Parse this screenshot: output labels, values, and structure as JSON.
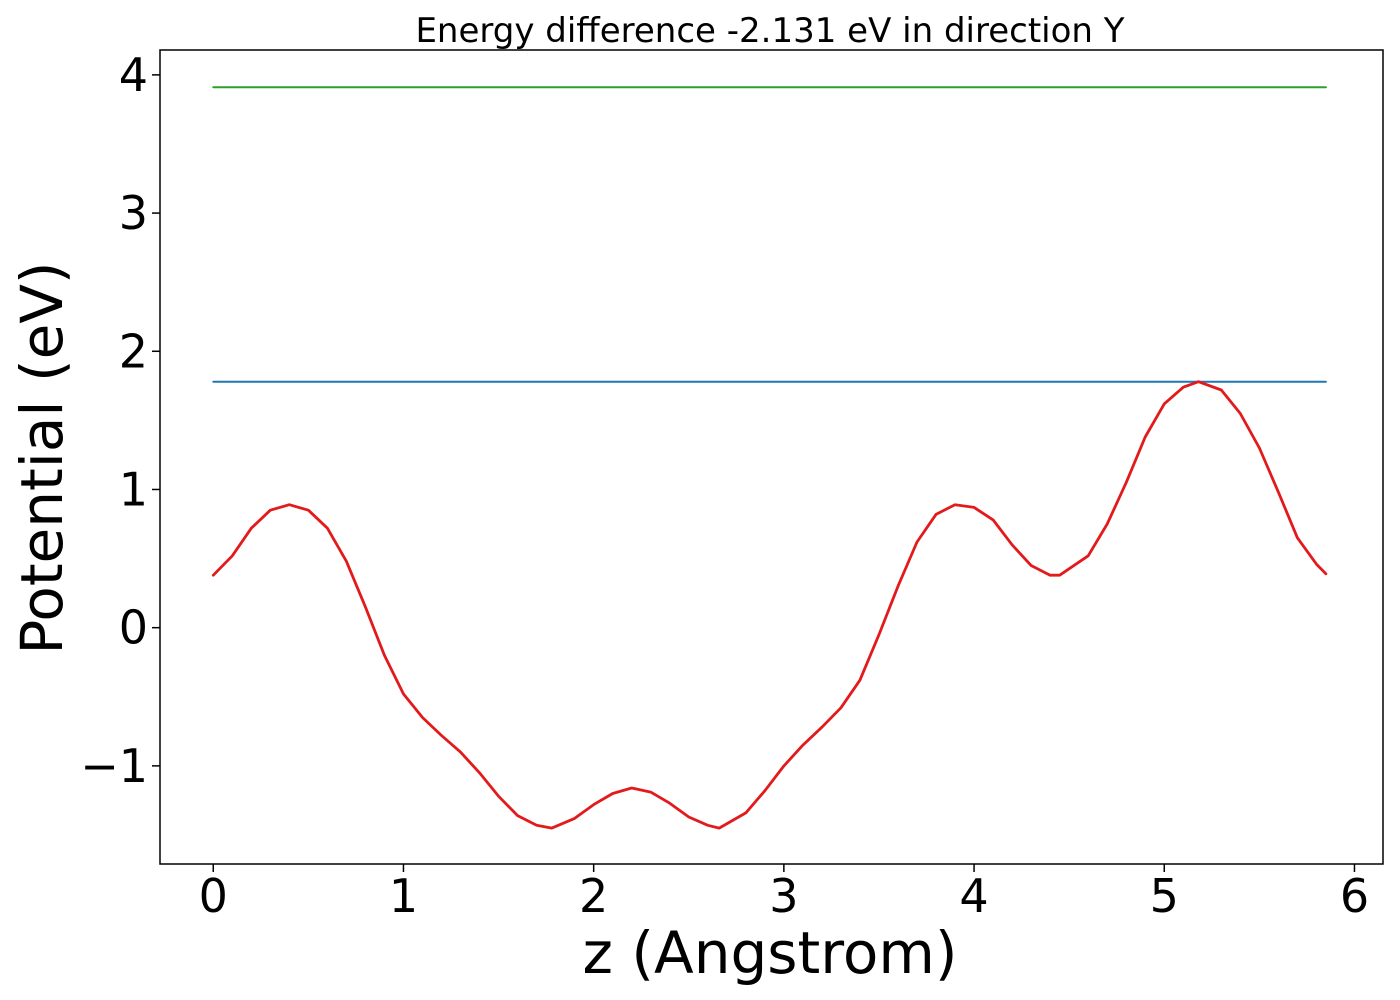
{
  "chart_data": {
    "type": "line",
    "title": "Energy difference -2.131 eV in direction Y",
    "xlabel": "z (Angstrom)",
    "ylabel": "Potential (eV)",
    "xlim": [
      -0.28,
      6.15
    ],
    "ylim": [
      -1.71,
      4.18
    ],
    "xticks": [
      0,
      1,
      2,
      3,
      4,
      5,
      6
    ],
    "xtick_labels": [
      "0",
      "1",
      "2",
      "3",
      "4",
      "5",
      "6"
    ],
    "yticks": [
      -1,
      0,
      1,
      2,
      3,
      4
    ],
    "ytick_labels": [
      "−1",
      "0",
      "1",
      "2",
      "3",
      "4"
    ],
    "grid": false,
    "legend": "none",
    "series": [
      {
        "color": "#2ca02c",
        "x": [
          0,
          5.85
        ],
        "y": [
          3.91,
          3.91
        ]
      },
      {
        "color": "#1f77b4",
        "x": [
          0,
          5.85
        ],
        "y": [
          1.78,
          1.78
        ]
      },
      {
        "color": "#e31a1c",
        "x": [
          0,
          0.1,
          0.2,
          0.3,
          0.4,
          0.5,
          0.6,
          0.7,
          0.8,
          0.9,
          1.0,
          1.1,
          1.2,
          1.3,
          1.4,
          1.5,
          1.6,
          1.7,
          1.78,
          1.9,
          2.0,
          2.1,
          2.2,
          2.3,
          2.4,
          2.5,
          2.6,
          2.66,
          2.8,
          2.9,
          3.0,
          3.1,
          3.2,
          3.3,
          3.4,
          3.5,
          3.6,
          3.7,
          3.8,
          3.9,
          4.0,
          4.1,
          4.2,
          4.3,
          4.4,
          4.45,
          4.6,
          4.7,
          4.8,
          4.9,
          5.0,
          5.1,
          5.18,
          5.3,
          5.4,
          5.5,
          5.6,
          5.7,
          5.8,
          5.85
        ],
        "y": [
          0.38,
          0.52,
          0.72,
          0.85,
          0.89,
          0.85,
          0.72,
          0.48,
          0.15,
          -0.2,
          -0.48,
          -0.65,
          -0.78,
          -0.9,
          -1.05,
          -1.22,
          -1.36,
          -1.43,
          -1.45,
          -1.38,
          -1.28,
          -1.2,
          -1.16,
          -1.19,
          -1.27,
          -1.37,
          -1.43,
          -1.45,
          -1.34,
          -1.18,
          -1.0,
          -0.85,
          -0.72,
          -0.58,
          -0.38,
          -0.05,
          0.3,
          0.62,
          0.82,
          0.89,
          0.87,
          0.78,
          0.6,
          0.45,
          0.38,
          0.38,
          0.52,
          0.75,
          1.05,
          1.38,
          1.62,
          1.74,
          1.78,
          1.72,
          1.55,
          1.3,
          0.98,
          0.65,
          0.46,
          0.39
        ]
      }
    ]
  }
}
